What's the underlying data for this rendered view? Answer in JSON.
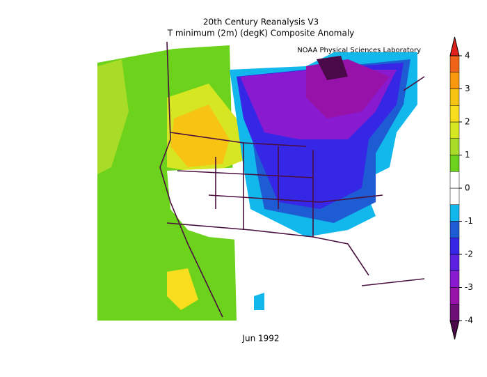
{
  "title": "20th Century Reanalysis V3",
  "subtitle": "T minimum (2m) (degK) Composite Anomaly",
  "credit": "NOAA Physical Sciences Laboratory",
  "date": "Jun 1992",
  "colorbar": {
    "levels": [
      -4,
      -3.5,
      -3,
      -2.5,
      -2,
      -1.5,
      -1,
      -0.5,
      0,
      0.5,
      1,
      1.5,
      2,
      2.5,
      3,
      3.5,
      4
    ],
    "colors": [
      "#4a0a4a",
      "#6e0f78",
      "#9612a8",
      "#8a1ad0",
      "#5a22e0",
      "#3626e6",
      "#1e5cd4",
      "#12b8ec",
      "#ffffff",
      "#ffffff",
      "#6cd21c",
      "#a8dc28",
      "#d6e622",
      "#f8de1e",
      "#f8c414",
      "#f8980e",
      "#f0641a",
      "#e0201a"
    ],
    "ticks": [
      4,
      3,
      2,
      1,
      0,
      -1,
      -2,
      -3,
      -4
    ]
  }
}
